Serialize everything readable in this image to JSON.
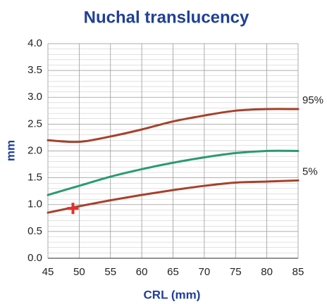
{
  "chart_data": {
    "type": "line",
    "title": "Nuchal translucency",
    "xlabel": "CRL (mm)",
    "ylabel": "mm",
    "x": [
      45,
      50,
      55,
      60,
      65,
      70,
      75,
      80,
      85
    ],
    "xlim": [
      45,
      85
    ],
    "xticks": [
      45,
      50,
      55,
      60,
      65,
      70,
      75,
      80,
      85
    ],
    "ylim": [
      0,
      4
    ],
    "yticks": [
      {
        "value": 0,
        "label": "0.0"
      },
      0.5,
      {
        "value": 1,
        "label": "1.0"
      },
      1.5,
      {
        "value": 2,
        "label": "2.0"
      },
      2.5,
      {
        "value": 3,
        "label": "3.0"
      },
      3.5,
      {
        "value": 4,
        "label": "4.0"
      }
    ],
    "minor_grid": 0.1,
    "grid": true,
    "series": [
      {
        "name": "95%",
        "color": "#a8402c",
        "values": [
          2.2,
          2.17,
          2.27,
          2.4,
          2.55,
          2.66,
          2.75,
          2.78,
          2.78
        ]
      },
      {
        "color": "#2b9a72",
        "values": [
          1.18,
          1.35,
          1.52,
          1.66,
          1.78,
          1.88,
          1.96,
          2.0,
          2.0
        ]
      },
      {
        "name": "5%",
        "color": "#a8402c",
        "values": [
          0.85,
          0.97,
          1.08,
          1.18,
          1.27,
          1.35,
          1.41,
          1.43,
          1.45
        ]
      }
    ],
    "marker": {
      "x": 49,
      "y": 0.93,
      "color": "#e8302a"
    }
  }
}
